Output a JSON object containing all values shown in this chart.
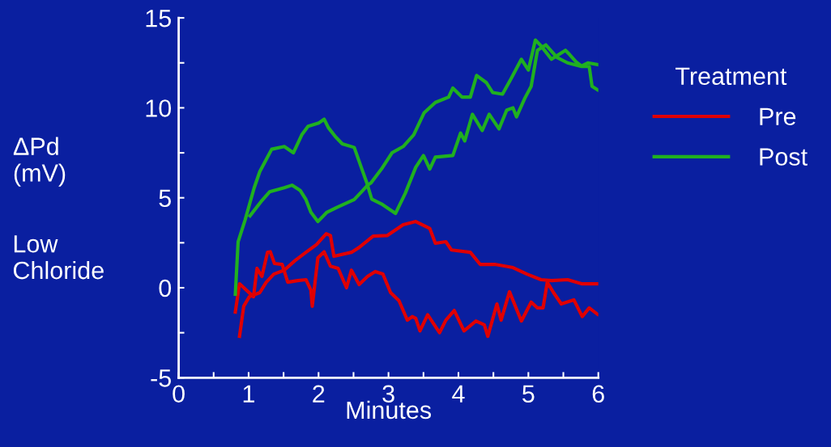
{
  "chart_data": {
    "type": "line",
    "xlabel": "Minutes",
    "ylabel": "ΔPd\n(mV)",
    "legend_title": "Treatment",
    "annotations": [
      "Low\nChloride"
    ],
    "xlim": [
      0,
      6
    ],
    "ylim": [
      -5,
      15
    ],
    "xticks": [
      0,
      {
        "value": 0.5,
        "label": null
      },
      1,
      {
        "value": 1.5,
        "label": null
      },
      2,
      {
        "value": 2.5,
        "label": null
      },
      3,
      {
        "value": 3.5,
        "label": null
      },
      4,
      {
        "value": 4.5,
        "label": null
      },
      5,
      {
        "value": 5.5,
        "label": null
      },
      6
    ],
    "yticks": [
      -5,
      {
        "value": -2.5,
        "label": null
      },
      0,
      {
        "value": 2.5,
        "label": null
      },
      5,
      {
        "value": 7.5,
        "label": null
      },
      10,
      {
        "value": 12.5,
        "label": null
      },
      15
    ],
    "grid": false,
    "legend": "right",
    "marker": "none",
    "line_style": "solid",
    "series": [
      {
        "name": "Pre",
        "color": "#e00000",
        "x": [
          0.87,
          0.93,
          1.01,
          1.16,
          1.25,
          1.36,
          1.51,
          1.66,
          1.82,
          1.97,
          2.11,
          2.17,
          2.22,
          2.47,
          2.58,
          2.78,
          2.98,
          3.21,
          3.39,
          3.59,
          3.67,
          3.82,
          3.9,
          4.17,
          4.31,
          4.52,
          4.78,
          4.98,
          5.18,
          5.33,
          5.56,
          5.76,
          5.99
        ],
        "values": [
          -2.7,
          -1.03,
          -0.5,
          -0.27,
          0.3,
          0.76,
          0.98,
          1.5,
          1.97,
          2.4,
          3.0,
          2.9,
          1.75,
          1.97,
          2.24,
          2.87,
          2.9,
          3.5,
          3.68,
          3.3,
          2.47,
          2.56,
          2.1,
          1.97,
          1.3,
          1.3,
          1.12,
          0.76,
          0.45,
          0.4,
          0.45,
          0.22,
          0.22
        ]
      },
      {
        "color": "#e00000",
        "x": [
          0.81,
          0.87,
          1.07,
          1.12,
          1.19,
          1.27,
          1.31,
          1.37,
          1.48,
          1.56,
          1.7,
          1.82,
          1.89,
          1.91,
          1.99,
          2.08,
          2.17,
          2.28,
          2.4,
          2.47,
          2.58,
          2.7,
          2.81,
          2.92,
          3.03,
          3.15,
          3.27,
          3.34,
          3.39,
          3.45,
          3.56,
          3.73,
          3.82,
          3.94,
          4.08,
          4.25,
          4.37,
          4.42,
          4.55,
          4.61,
          4.73,
          4.9,
          5.04,
          5.13,
          5.21,
          5.27,
          5.36,
          5.47,
          5.65,
          5.77,
          5.87,
          5.99
        ],
        "values": [
          -1.35,
          0.22,
          -0.5,
          1.08,
          0.63,
          1.97,
          2.0,
          1.35,
          1.3,
          0.31,
          0.4,
          0.45,
          -0.13,
          -1.03,
          1.66,
          2.0,
          1.2,
          1.08,
          0,
          0.98,
          0.18,
          0.63,
          0.9,
          0.76,
          -0.27,
          -0.72,
          -1.8,
          -1.6,
          -1.7,
          -2.4,
          -1.5,
          -2.5,
          -1.8,
          -1.26,
          -2.4,
          -1.85,
          -2.06,
          -2.7,
          -0.9,
          -1.8,
          -0.22,
          -1.85,
          -0.8,
          -1.12,
          -1.12,
          0.31,
          -0.27,
          -0.9,
          -0.67,
          -1.6,
          -1.12,
          -1.48
        ]
      },
      {
        "name": "Post",
        "color": "#20b020",
        "x": [
          0.81,
          0.85,
          0.95,
          1.08,
          1.16,
          1.24,
          1.33,
          1.51,
          1.64,
          1.76,
          1.85,
          2.0,
          2.08,
          2.14,
          2.24,
          2.34,
          2.51,
          2.61,
          2.69,
          2.76,
          2.9,
          3.1,
          3.24,
          3.39,
          3.5,
          3.59,
          3.67,
          3.92,
          4.03,
          4.09,
          4.2,
          4.34,
          4.44,
          4.58,
          4.69,
          4.78,
          4.83,
          4.95,
          5.04,
          5.13,
          5.25,
          5.41,
          5.56,
          5.76,
          5.87,
          5.91,
          5.99
        ],
        "values": [
          -0.36,
          2.56,
          3.77,
          5.56,
          6.46,
          7.04,
          7.7,
          7.85,
          7.5,
          8.5,
          8.97,
          9.15,
          9.37,
          8.9,
          8.4,
          8.0,
          7.8,
          6.7,
          5.83,
          4.93,
          4.66,
          4.13,
          5.25,
          6.7,
          7.35,
          6.6,
          7.26,
          7.35,
          8.6,
          8.16,
          9.64,
          8.74,
          9.64,
          8.83,
          9.87,
          10.0,
          9.5,
          10.54,
          11.2,
          13.2,
          13.5,
          12.8,
          12.5,
          12.3,
          12.3,
          11.2,
          11.0
        ]
      },
      {
        "color": "#20b020",
        "x": [
          1.02,
          1.18,
          1.3,
          1.51,
          1.62,
          1.74,
          1.82,
          1.89,
          1.99,
          2.12,
          2.28,
          2.51,
          2.63,
          2.7,
          2.75,
          2.9,
          3.05,
          3.21,
          3.36,
          3.51,
          3.67,
          3.86,
          3.92,
          4.05,
          4.17,
          4.26,
          4.4,
          4.49,
          4.63,
          4.75,
          4.9,
          5.0,
          5.1,
          5.18,
          5.33,
          5.53,
          5.59,
          5.68,
          5.76,
          5.85,
          5.99
        ],
        "values": [
          4.0,
          4.8,
          5.33,
          5.56,
          5.7,
          5.4,
          4.9,
          4.2,
          3.68,
          4.2,
          4.5,
          4.9,
          5.4,
          5.7,
          5.83,
          6.6,
          7.5,
          7.85,
          8.5,
          9.73,
          10.3,
          10.6,
          11.1,
          10.6,
          10.6,
          11.8,
          11.4,
          10.85,
          10.76,
          11.6,
          12.7,
          12.1,
          13.77,
          13.45,
          12.7,
          13.2,
          12.96,
          12.56,
          12.33,
          12.5,
          12.4
        ]
      }
    ]
  }
}
